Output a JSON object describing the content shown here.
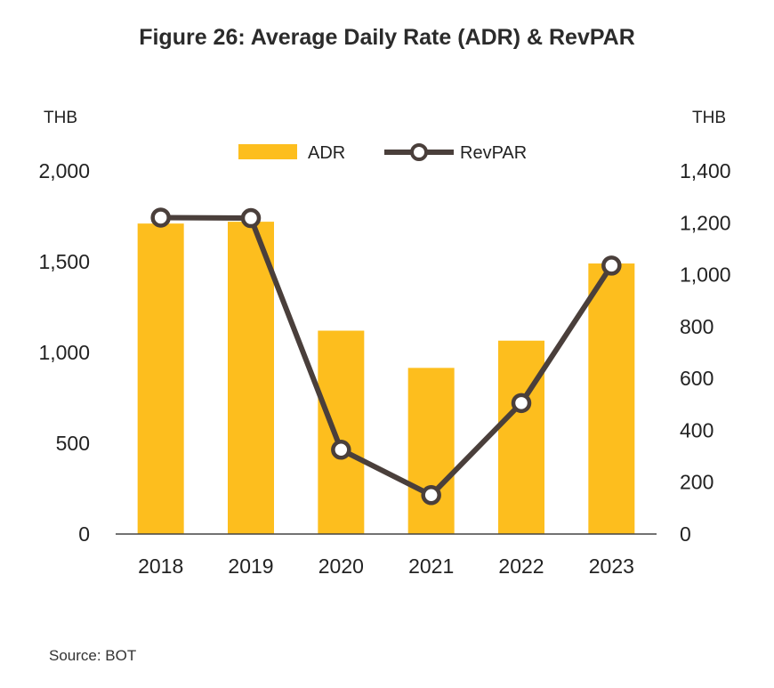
{
  "chart_data": {
    "type": "bar",
    "title": "Figure 26: Average Daily Rate (ADR) & RevPAR",
    "categories": [
      "2018",
      "2019",
      "2020",
      "2021",
      "2022",
      "2023"
    ],
    "series": [
      {
        "name": "ADR",
        "type": "bar",
        "axis": "left",
        "color": "#FDBE1E",
        "values": [
          1710,
          1720,
          1120,
          915,
          1065,
          1490
        ]
      },
      {
        "name": "RevPAR",
        "type": "line",
        "axis": "right",
        "color": "#4A3F3B",
        "values": [
          1220,
          1218,
          325,
          150,
          505,
          1035
        ]
      }
    ],
    "left_axis": {
      "unit": "THB",
      "ylim": [
        0,
        2000
      ],
      "ticks": [
        0,
        500,
        1000,
        1500,
        2000
      ],
      "tick_labels": [
        "0",
        "500",
        "1,000",
        "1,500",
        "2,000"
      ]
    },
    "right_axis": {
      "unit": "THB",
      "ylim": [
        0,
        1400
      ],
      "ticks": [
        0,
        200,
        400,
        600,
        800,
        1000,
        1200,
        1400
      ],
      "tick_labels": [
        "0",
        "200",
        "400",
        "600",
        "800",
        "1,000",
        "1,200",
        "1,400"
      ]
    },
    "legend": {
      "position": "top-center",
      "entries": [
        "ADR",
        "RevPAR"
      ]
    },
    "grid": false
  },
  "source": "Source: BOT"
}
